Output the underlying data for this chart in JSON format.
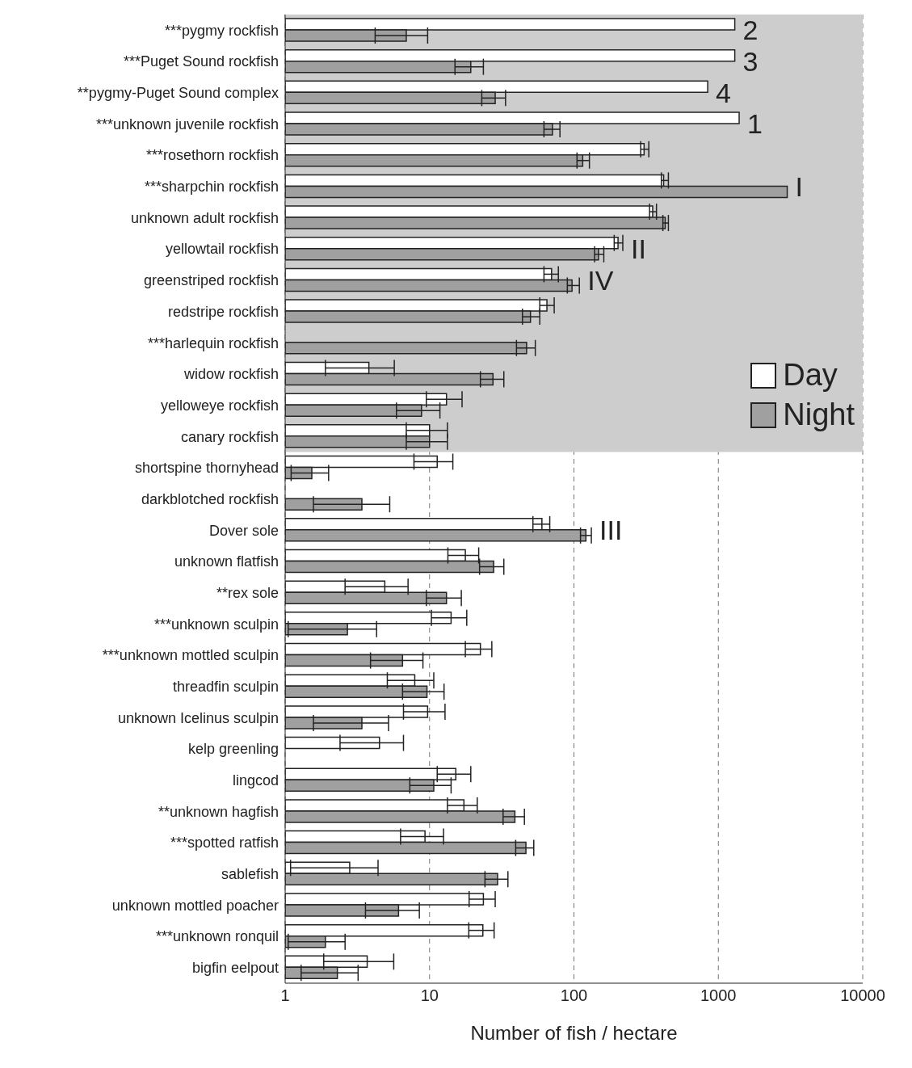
{
  "chart_data": {
    "type": "bar",
    "orientation": "horizontal",
    "xlabel": "Number of fish / hectare",
    "log": "x",
    "xlim": [
      1,
      10000
    ],
    "xticks": [
      1,
      10,
      100,
      1000,
      10000
    ],
    "grid": "x",
    "legend": "right",
    "categories": [
      "***pygmy rockfish",
      "***Puget Sound rockfish",
      "**pygmy-Puget Sound complex",
      "***unknown juvenile rockfish",
      "***rosethorn rockfish",
      "***sharpchin rockfish",
      "unknown adult rockfish",
      "yellowtail rockfish",
      "greenstriped rockfish",
      "redstripe rockfish",
      "***harlequin rockfish",
      "widow rockfish",
      "yelloweye rockfish",
      "canary rockfish",
      "shortspine thornyhead",
      "darkblotched rockfish",
      "Dover sole",
      "unknown flatfish",
      "**rex sole",
      "***unknown sculpin",
      "***unknown mottled sculpin",
      "threadfin sculpin",
      "unknown Icelinus sculpin",
      "kelp greenling",
      "lingcod",
      "**unknown hagfish",
      "***spotted ratfish",
      "sablefish",
      "unknown mottled poacher",
      "***unknown ronquil",
      "bigfin eelpout"
    ],
    "series": [
      {
        "name": "Day",
        "color": "#ffffff",
        "values": [
          1300,
          1300,
          844,
          1394,
          306,
          418,
          351,
          202,
          70,
          65,
          null,
          3.8,
          13.1,
          10,
          11.3,
          null,
          60,
          17.7,
          4.9,
          14.1,
          22.5,
          7.9,
          9.7,
          4.5,
          15.2,
          17.3,
          9.3,
          2.8,
          23.6,
          23.4,
          3.7
        ],
        "errors": [
          null,
          null,
          null,
          null,
          [
            290,
            330
          ],
          [
            403,
            451
          ],
          [
            334,
            373
          ],
          [
            190,
            218
          ],
          [
            62,
            78
          ],
          [
            58,
            73
          ],
          null,
          [
            1.9,
            5.7
          ],
          [
            9.5,
            16.8
          ],
          [
            6.9,
            13.3
          ],
          [
            7.8,
            14.5
          ],
          null,
          [
            52,
            68
          ],
          [
            13.4,
            21.9
          ],
          [
            2.6,
            7.1
          ],
          [
            10.3,
            18.1
          ],
          [
            17.7,
            27
          ],
          [
            5.1,
            10.7
          ],
          [
            6.6,
            12.8
          ],
          [
            2.4,
            6.6
          ],
          [
            11.3,
            19.3
          ],
          [
            13.3,
            21.4
          ],
          [
            6.3,
            12.5
          ],
          [
            1.09,
            4.4
          ],
          [
            18.8,
            28.5
          ],
          [
            18.7,
            28
          ],
          [
            1.85,
            5.65
          ]
        ]
      },
      {
        "name": "Night",
        "color": "#a0a0a0",
        "values": [
          6.9,
          19.3,
          28.5,
          71,
          115,
          3000,
          429,
          148,
          97,
          50,
          47,
          27.5,
          8.8,
          10,
          1.53,
          3.4,
          121,
          27.8,
          13.1,
          2.7,
          6.5,
          9.6,
          3.4,
          null,
          10.7,
          39,
          46.5,
          29.6,
          6.1,
          1.9,
          2.3
        ],
        "errors": [
          [
            4.2,
            9.7
          ],
          [
            15,
            23.6
          ],
          [
            23,
            33.6
          ],
          [
            62,
            80
          ],
          [
            105,
            128
          ],
          null,
          [
            413,
            451
          ],
          [
            139,
            161
          ],
          [
            90,
            109
          ],
          [
            44,
            58
          ],
          [
            40,
            54
          ],
          [
            22.5,
            32.7
          ],
          [
            5.9,
            11.8
          ],
          [
            6.9,
            13.3
          ],
          [
            1.1,
            2
          ],
          [
            1.57,
            5.3
          ],
          [
            111,
            132
          ],
          [
            22.2,
            32.7
          ],
          [
            9.5,
            16.6
          ],
          [
            1.05,
            4.3
          ],
          [
            3.9,
            9
          ],
          [
            6.5,
            12.6
          ],
          [
            1.57,
            5.2
          ],
          null,
          [
            7.3,
            14.1
          ],
          [
            32.3,
            45.4
          ],
          [
            39.5,
            52.7
          ],
          [
            24.2,
            34.9
          ],
          [
            3.6,
            8.5
          ],
          [
            1.05,
            2.6
          ],
          [
            1.29,
            3.2
          ]
        ]
      }
    ],
    "bands": [
      {
        "axis": "y",
        "from": "***pygmy rockfish",
        "to": "canary rockfish",
        "color": "#cdcdcd"
      }
    ],
    "annotations": [
      {
        "text": "2",
        "x": 1300,
        "y": "***pygmy rockfish"
      },
      {
        "text": "3",
        "x": 1300,
        "y": "***Puget Sound rockfish"
      },
      {
        "text": "4",
        "x": 844,
        "y": "**pygmy-Puget Sound complex"
      },
      {
        "text": "1",
        "x": 1394,
        "y": "***unknown juvenile rockfish"
      },
      {
        "text": "I",
        "x": 3000,
        "y": "***sharpchin rockfish"
      },
      {
        "text": "II",
        "x": 218,
        "y": "yellowtail rockfish"
      },
      {
        "text": "IV",
        "x": 109,
        "y": "greenstriped rockfish"
      },
      {
        "text": "III",
        "x": 132,
        "y": "Dover sole"
      }
    ]
  }
}
